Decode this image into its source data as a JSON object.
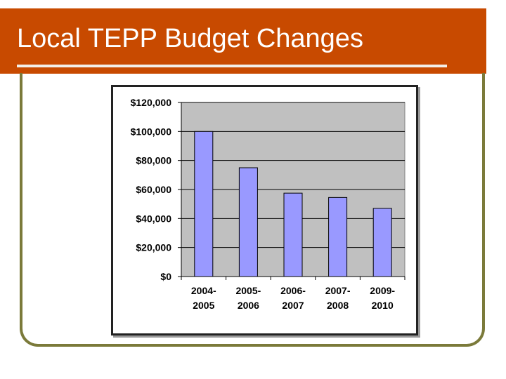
{
  "slide": {
    "title": "Local TEPP Budget Changes"
  },
  "colors": {
    "title_bar": "#c84a00",
    "frame": "#7b7a3a",
    "plot_bg": "#c0c0c0",
    "bar_fill": "#9999ff",
    "bar_stroke": "#000000"
  },
  "chart_data": {
    "type": "bar",
    "categories": [
      [
        "2004-",
        "2005"
      ],
      [
        "2005-",
        "2006"
      ],
      [
        "2006-",
        "2007"
      ],
      [
        "2007-",
        "2008"
      ],
      [
        "2009-",
        "2010"
      ]
    ],
    "values": [
      100000,
      75000,
      57500,
      54500,
      47000
    ],
    "ylim": [
      0,
      120000
    ],
    "yticks": [
      0,
      20000,
      40000,
      60000,
      80000,
      100000,
      120000
    ],
    "ytick_labels": [
      "$0",
      "$20,000",
      "$40,000",
      "$60,000",
      "$80,000",
      "$100,000",
      "$120,000"
    ],
    "grid": true,
    "legend": false
  }
}
